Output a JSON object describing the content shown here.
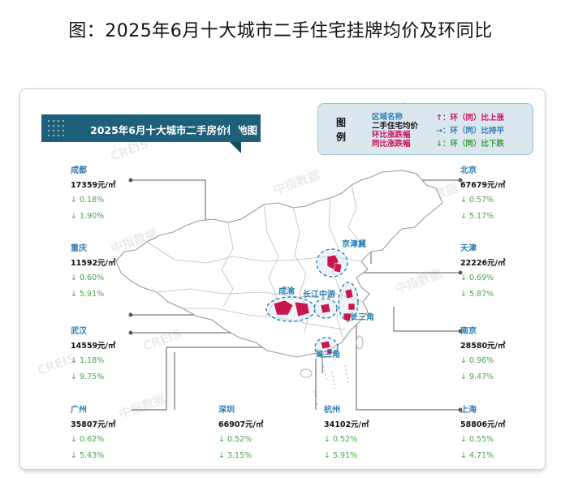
{
  "title": "图：2025年6月十大城市二手住宅挂牌均价及环同比",
  "banner": "2025年6月十大城市二手房价格地图",
  "legend": {
    "key": [
      "图",
      "例"
    ],
    "names": [
      "区域名称",
      "二手住宅均价",
      "环比涨跌幅",
      "同比涨跌幅"
    ],
    "trends": [
      {
        "text": "↑：环（同）比上涨",
        "color": "#d0105c"
      },
      {
        "text": "→：环（同）比持平",
        "color": "#2d7fb4"
      },
      {
        "text": "↓：环（同）比下跌",
        "color": "#3f9a3f"
      }
    ]
  },
  "regions": [
    "京津冀",
    "成渝",
    "长江中游",
    "长三角",
    "珠三角"
  ],
  "watermark": [
    "中指数据",
    "CREIS"
  ],
  "cities": [
    {
      "name": "成都",
      "price": "17359元/㎡",
      "mom": "↓ 0.18%",
      "yoy": "↓ 1.90%"
    },
    {
      "name": "重庆",
      "price": "11592元/㎡",
      "mom": "↓ 0.60%",
      "yoy": "↓ 5.91%"
    },
    {
      "name": "武汉",
      "price": "14559元/㎡",
      "mom": "↓ 1.18%",
      "yoy": "↓ 9.75%"
    },
    {
      "name": "广州",
      "price": "35807元/㎡",
      "mom": "↓ 0.62%",
      "yoy": "↓ 5.43%"
    },
    {
      "name": "深圳",
      "price": "66907元/㎡",
      "mom": "↓ 0.52%",
      "yoy": "↓ 3.15%"
    },
    {
      "name": "杭州",
      "price": "34102元/㎡",
      "mom": "↓ 0.52%",
      "yoy": "↓ 5.91%"
    },
    {
      "name": "北京",
      "price": "67679元/㎡",
      "mom": "↓ 0.57%",
      "yoy": "↓ 5.17%"
    },
    {
      "name": "天津",
      "price": "22226元/㎡",
      "mom": "↓ 0.69%",
      "yoy": "↓ 5.87%"
    },
    {
      "name": "南京",
      "price": "28580元/㎡",
      "mom": "↓ 0.96%",
      "yoy": "↓ 9.47%"
    },
    {
      "name": "上海",
      "price": "58806元/㎡",
      "mom": "↓ 0.55%",
      "yoy": "↓ 4.71%"
    }
  ],
  "colors": {
    "banner": "#1e5f7a",
    "region_label": "#2d7fb4",
    "city_fill": "#c8164f",
    "decline": "#4aa64a"
  }
}
